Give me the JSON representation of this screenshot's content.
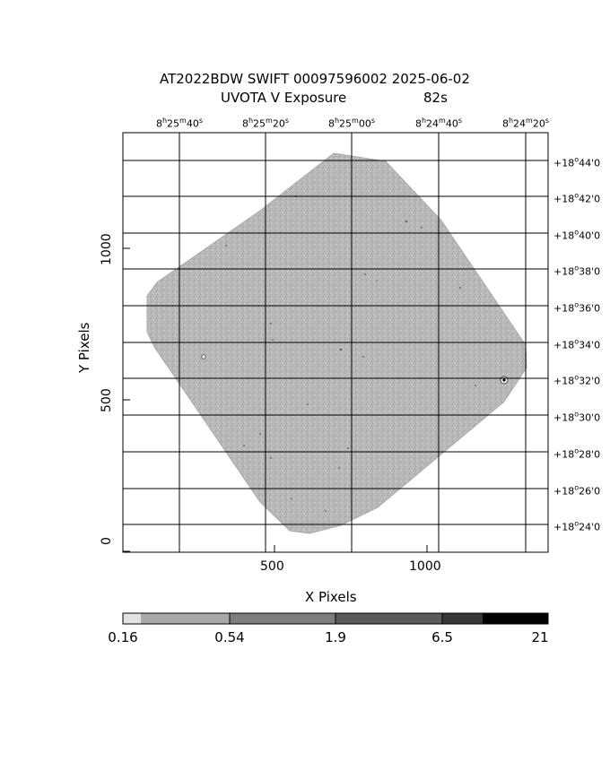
{
  "header": {
    "title_line1": "AT2022BDW SWIFT 00097596002 2025-06-02",
    "title_line2_left": "UVOTA V Exposure",
    "title_line2_right": "82s"
  },
  "ra_labels": [
    {
      "h": "8",
      "m": "25",
      "s": "40"
    },
    {
      "h": "8",
      "m": "25",
      "s": "20"
    },
    {
      "h": "8",
      "m": "25",
      "s": "00"
    },
    {
      "h": "8",
      "m": "24",
      "s": "40"
    },
    {
      "h": "8",
      "m": "24",
      "s": "20"
    }
  ],
  "dec_labels": [
    {
      "deg": "+18",
      "min": "44"
    },
    {
      "deg": "+18",
      "min": "42"
    },
    {
      "deg": "+18",
      "min": "40"
    },
    {
      "deg": "+18",
      "min": "38"
    },
    {
      "deg": "+18",
      "min": "36"
    },
    {
      "deg": "+18",
      "min": "34"
    },
    {
      "deg": "+18",
      "min": "32"
    },
    {
      "deg": "+18",
      "min": "30"
    },
    {
      "deg": "+18",
      "min": "28"
    },
    {
      "deg": "+18",
      "min": "26"
    },
    {
      "deg": "+18",
      "min": "24"
    }
  ],
  "x_axis": {
    "title": "X Pixels",
    "ticks": [
      "500",
      "1000"
    ]
  },
  "y_axis": {
    "title": "Y Pixels",
    "ticks": [
      "0",
      "500",
      "1000"
    ]
  },
  "colorbar": {
    "labels": [
      "0.16",
      "0.54",
      "1.9",
      "6.5",
      "21"
    ],
    "colors": [
      "#e6e6e6",
      "#c2c2c2",
      "#a6a6a6",
      "#7e7e7e",
      "#575757",
      "#2e2e2e",
      "#000000"
    ]
  }
}
